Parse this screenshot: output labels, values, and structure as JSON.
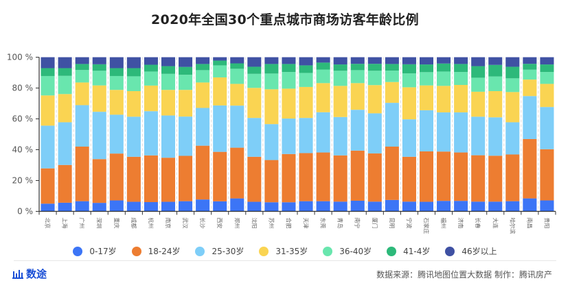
{
  "chart_data": {
    "type": "bar",
    "stacked": true,
    "normalized": true,
    "title": "2020年全国30个重点城市商场访客年龄比例",
    "xlabel": "",
    "ylabel": "",
    "ylim": [
      0,
      100
    ],
    "yticks": [
      "0 %",
      "20 %",
      "40 %",
      "60 %",
      "80 %",
      "100 %"
    ],
    "grid": false,
    "legend_position": "bottom",
    "categories": [
      "北京",
      "上海",
      "广州",
      "深圳",
      "重庆",
      "成都",
      "杭州",
      "南京",
      "武汉",
      "长沙",
      "西安",
      "郑州",
      "沈阳",
      "苏州",
      "合肥",
      "天津",
      "东莞",
      "青岛",
      "南宁",
      "厦门",
      "昆明",
      "宁波",
      "石家庄",
      "福州",
      "济南",
      "长春",
      "大连",
      "哈尔滨",
      "南昌",
      "贵阳"
    ],
    "series": [
      {
        "name": "0-17岁",
        "color": "#3C75F6",
        "values": [
          5.0,
          5.6,
          6.6,
          5.5,
          7.1,
          6.2,
          6.0,
          6.2,
          6.6,
          7.7,
          6.5,
          8.4,
          6.2,
          5.9,
          5.9,
          6.6,
          6.6,
          6.3,
          6.9,
          6.3,
          7.4,
          6.3,
          6.2,
          6.8,
          6.8,
          6.3,
          6.3,
          6.6,
          8.4,
          7.1
        ]
      },
      {
        "name": "18-24岁",
        "color": "#ED7D31",
        "values": [
          22.9,
          24.5,
          35.4,
          28.4,
          30.4,
          29.2,
          30.3,
          28.6,
          29.4,
          34.9,
          32.1,
          32.9,
          29.2,
          27.4,
          31.3,
          31.2,
          31.6,
          30.0,
          32.5,
          31.3,
          34.6,
          29.1,
          32.7,
          32.0,
          31.4,
          30.1,
          29.8,
          30.3,
          38.5,
          33.2
        ]
      },
      {
        "name": "25-30岁",
        "color": "#7ECEF8",
        "values": [
          27.7,
          27.7,
          26.9,
          30.7,
          25.2,
          26.0,
          28.7,
          27.4,
          25.5,
          24.5,
          30.1,
          27.3,
          25.2,
          23.3,
          23.0,
          22.8,
          26.1,
          24.9,
          26.5,
          26.0,
          28.4,
          24.3,
          26.7,
          25.4,
          26.0,
          25.0,
          24.9,
          20.9,
          27.9,
          27.4
        ]
      },
      {
        "name": "31-35岁",
        "color": "#FAD452",
        "values": [
          19.6,
          18.3,
          14.7,
          17.1,
          16.1,
          16.6,
          16.6,
          16.6,
          17.3,
          16.5,
          18.2,
          14.1,
          19.5,
          22.6,
          19.4,
          20.1,
          18.9,
          20.2,
          17.3,
          18.3,
          13.5,
          20.8,
          16.1,
          17.2,
          17.8,
          16.2,
          17.0,
          19.6,
          10.7,
          15.0
        ]
      },
      {
        "name": "36-40岁",
        "color": "#69E6AE",
        "values": [
          12.6,
          11.8,
          8.1,
          9.5,
          9.0,
          9.6,
          9.1,
          10.4,
          9.8,
          8.0,
          7.8,
          9.8,
          9.1,
          10.2,
          10.8,
          9.1,
          8.8,
          9.8,
          8.4,
          9.3,
          7.4,
          9.0,
          8.6,
          9.3,
          8.4,
          9.1,
          9.5,
          8.9,
          6.4,
          7.7
        ]
      },
      {
        "name": "41-4岁",
        "color": "#2DB97A",
        "values": [
          5.1,
          5.0,
          3.9,
          4.2,
          5.1,
          5.3,
          4.4,
          5.0,
          5.1,
          4.0,
          3.1,
          3.5,
          4.6,
          6.2,
          5.2,
          4.9,
          4.5,
          4.1,
          4.1,
          4.5,
          4.3,
          5.9,
          5.0,
          5.2,
          5.2,
          7.5,
          7.5,
          7.5,
          3.8,
          4.9
        ]
      },
      {
        "name": "46岁以上",
        "color": "#3F51A3",
        "values": [
          7.1,
          7.1,
          4.4,
          4.6,
          7.1,
          7.1,
          4.9,
          5.8,
          6.3,
          4.4,
          2.2,
          4.0,
          6.2,
          4.4,
          4.4,
          5.3,
          3.5,
          4.7,
          4.3,
          4.3,
          4.4,
          4.6,
          4.7,
          4.1,
          4.4,
          5.8,
          5.0,
          6.2,
          4.3,
          4.7
        ]
      }
    ]
  },
  "footer": {
    "brand": "数途",
    "source": "数据来源：腾讯地图位置大数据  制作：腾讯房产"
  },
  "colors": {
    "brand": "#1A4FD6",
    "axis": "#333333",
    "separator": "#DDDDDD"
  }
}
